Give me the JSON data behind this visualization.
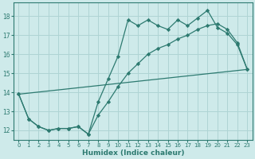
{
  "title": "",
  "xlabel": "Humidex (Indice chaleur)",
  "ylabel": "",
  "background_color": "#ceeaea",
  "grid_color": "#afd4d4",
  "line_color": "#2d7a70",
  "xlim": [
    -0.5,
    23.5
  ],
  "ylim": [
    11.5,
    18.7
  ],
  "yticks": [
    12,
    13,
    14,
    15,
    16,
    17,
    18
  ],
  "xticks": [
    0,
    1,
    2,
    3,
    4,
    5,
    6,
    7,
    8,
    9,
    10,
    11,
    12,
    13,
    14,
    15,
    16,
    17,
    18,
    19,
    20,
    21,
    22,
    23
  ],
  "line1_x": [
    0,
    1,
    2,
    3,
    4,
    5,
    6,
    7,
    8,
    9,
    10,
    11,
    12,
    13,
    14,
    15,
    16,
    17,
    18,
    19,
    20,
    21,
    22,
    23
  ],
  "line1_y": [
    13.9,
    12.6,
    12.2,
    12.0,
    12.1,
    12.1,
    12.2,
    11.8,
    13.5,
    14.7,
    15.9,
    17.8,
    17.5,
    17.8,
    17.5,
    17.3,
    17.8,
    17.5,
    17.9,
    18.3,
    17.4,
    17.1,
    16.5,
    15.2
  ],
  "line2_x": [
    0,
    1,
    2,
    3,
    4,
    5,
    6,
    7,
    8,
    9,
    10,
    11,
    12,
    13,
    14,
    15,
    16,
    17,
    18,
    19,
    20,
    21,
    22,
    23
  ],
  "line2_y": [
    13.9,
    12.6,
    12.2,
    12.0,
    12.1,
    12.1,
    12.2,
    11.8,
    12.8,
    13.5,
    14.3,
    15.0,
    15.5,
    16.0,
    16.3,
    16.5,
    16.8,
    17.0,
    17.3,
    17.5,
    17.6,
    17.3,
    16.6,
    15.2
  ],
  "line3_x": [
    0,
    23
  ],
  "line3_y": [
    13.9,
    15.2
  ]
}
